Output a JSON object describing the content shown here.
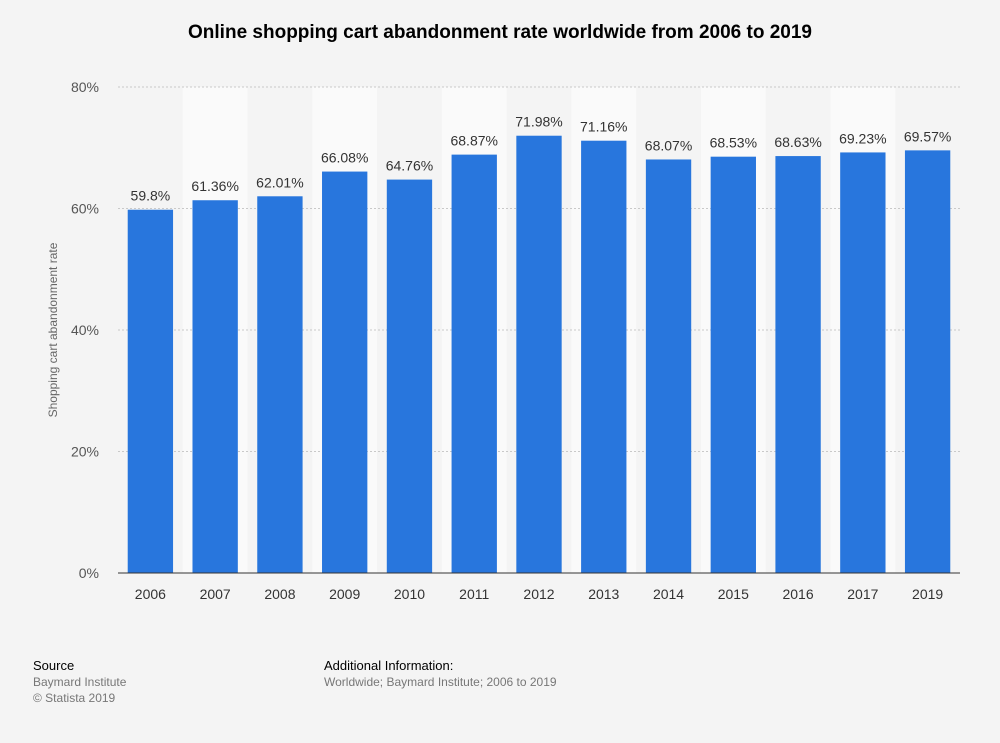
{
  "chart_data": {
    "type": "bar",
    "title": "Online shopping cart abandonment rate worldwide from 2006 to 2019",
    "xlabel": "",
    "ylabel": "Shopping cart abandonment rate",
    "categories": [
      "2006",
      "2007",
      "2008",
      "2009",
      "2010",
      "2011",
      "2012",
      "2013",
      "2014",
      "2015",
      "2016",
      "2017",
      "2019"
    ],
    "values": [
      59.8,
      61.36,
      62.01,
      66.08,
      64.76,
      68.87,
      71.98,
      71.16,
      68.07,
      68.53,
      68.63,
      69.23,
      69.57
    ],
    "data_labels": [
      "59.8%",
      "61.36%",
      "62.01%",
      "66.08%",
      "64.76%",
      "68.87%",
      "71.98%",
      "71.16%",
      "68.07%",
      "68.53%",
      "68.63%",
      "69.23%",
      "69.57%"
    ],
    "ylim": [
      0,
      80
    ],
    "y_ticks": [
      0,
      20,
      40,
      60,
      80
    ],
    "y_tick_labels": [
      "0%",
      "20%",
      "40%",
      "60%",
      "80%"
    ],
    "grid": true,
    "legend": "none",
    "bar_color": "#2876dd",
    "band_color": "#fafafa"
  },
  "footer": {
    "source_heading": "Source",
    "source_line1": "Baymard Institute",
    "source_line2": "© Statista 2019",
    "info_heading": "Additional Information:",
    "info_text": "Worldwide; Baymard Institute; 2006 to 2019"
  }
}
